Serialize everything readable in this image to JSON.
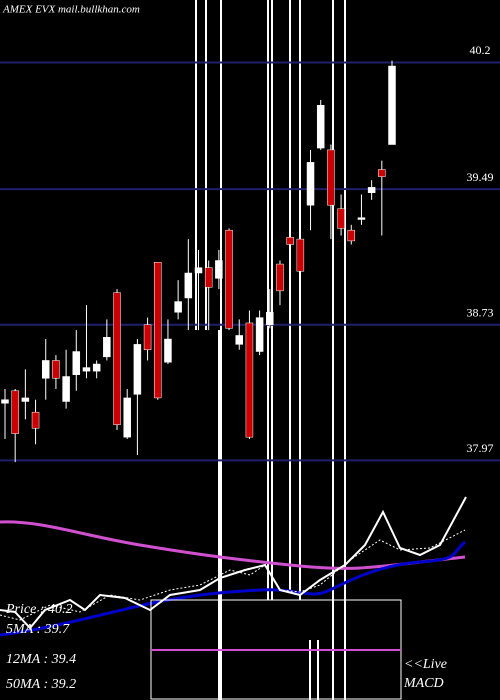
{
  "chart_data": {
    "type": "candlestick",
    "title": "AMEX EVX mail.bullkhan.com",
    "ylim": [
      37.86,
      40.55
    ],
    "yticks": [
      37.97,
      38.73,
      39.49,
      40.2
    ],
    "grid": true,
    "up_color": "#ffffff",
    "down_color": "#cc0000",
    "open": [
      38.29,
      38.36,
      38.3,
      38.24,
      38.43,
      38.53,
      38.3,
      38.45,
      38.47,
      38.47,
      38.55,
      38.91,
      38.1,
      38.34,
      38.73,
      39.08,
      38.52,
      38.8,
      38.88,
      39.02,
      39.05,
      38.99,
      39.26,
      38.62,
      38.74,
      38.58,
      38.73,
      39.07,
      39.22,
      39.21,
      39.4,
      39.72,
      39.71,
      39.38,
      39.26,
      39.32,
      39.47,
      39.6,
      39.74
    ],
    "high": [
      38.37,
      38.37,
      38.48,
      38.31,
      38.65,
      38.56,
      38.59,
      38.7,
      38.84,
      38.53,
      38.76,
      38.93,
      38.37,
      38.65,
      38.77,
      39.08,
      38.76,
      38.98,
      39.21,
      39.15,
      39.09,
      39.15,
      39.27,
      38.76,
      38.81,
      38.81,
      38.93,
      39.09,
      39.26,
      39.23,
      39.71,
      39.99,
      39.74,
      39.46,
      39.29,
      39.46,
      39.54,
      39.65,
      40.21
    ],
    "low": [
      38.09,
      37.96,
      38.2,
      38.06,
      38.31,
      38.37,
      38.26,
      38.36,
      38.43,
      38.43,
      38.53,
      38.14,
      38.09,
      38.0,
      38.53,
      38.31,
      38.51,
      38.76,
      38.7,
      38.7,
      38.7,
      38.93,
      38.7,
      38.59,
      38.09,
      38.56,
      38.71,
      38.84,
      39.07,
      39.01,
      39.26,
      39.71,
      39.21,
      39.23,
      39.18,
      39.29,
      39.43,
      39.23,
      39.74
    ],
    "close": [
      38.31,
      38.12,
      38.32,
      38.15,
      38.53,
      38.43,
      38.44,
      38.58,
      38.49,
      38.51,
      38.66,
      38.17,
      38.32,
      38.62,
      38.59,
      38.32,
      38.65,
      38.86,
      39.02,
      39.05,
      38.94,
      39.09,
      38.71,
      38.67,
      38.1,
      38.77,
      38.8,
      38.92,
      39.18,
      39.03,
      39.64,
      39.96,
      39.4,
      39.27,
      39.2,
      39.33,
      39.5,
      39.56,
      40.18
    ],
    "info_labels": [
      "Price  : 40.2",
      "5MA  : 39.7",
      "12MA : 39.4",
      "50MA : 39.2"
    ],
    "live_label": [
      "<<Live",
      "MACD"
    ]
  }
}
